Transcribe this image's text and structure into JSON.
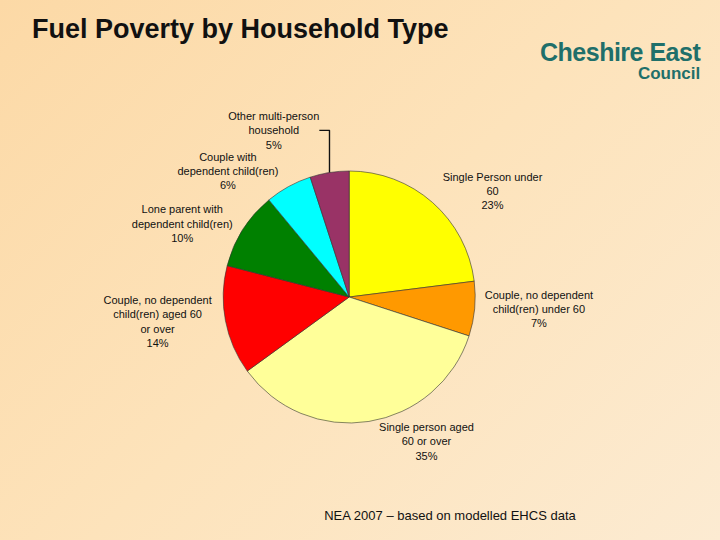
{
  "chart_data": {
    "type": "pie",
    "title": "Fuel Poverty by Household Type",
    "categories": [
      "Single Person under 60",
      "Couple, no dependent child(ren) under 60",
      "Single person aged 60 or over",
      "Couple, no dependent child(ren) aged 60 or over",
      "Lone parent with dependent child(ren)",
      "Couple with dependent child(ren)",
      "Other multi-person household"
    ],
    "values": [
      23,
      7,
      35,
      14,
      10,
      6,
      5
    ],
    "value_labels": [
      "23%",
      "7%",
      "35%",
      "14%",
      "10%",
      "6%",
      "5%"
    ],
    "colors": [
      "#ffff00",
      "#ff9900",
      "#ffff99",
      "#ff0000",
      "#008000",
      "#00ffff",
      "#993366"
    ],
    "data_labels": true,
    "annotations": [
      "NEA 2007 – based on modelled EHCS data"
    ]
  },
  "logo": [
    "Cheshire East",
    "Council"
  ]
}
